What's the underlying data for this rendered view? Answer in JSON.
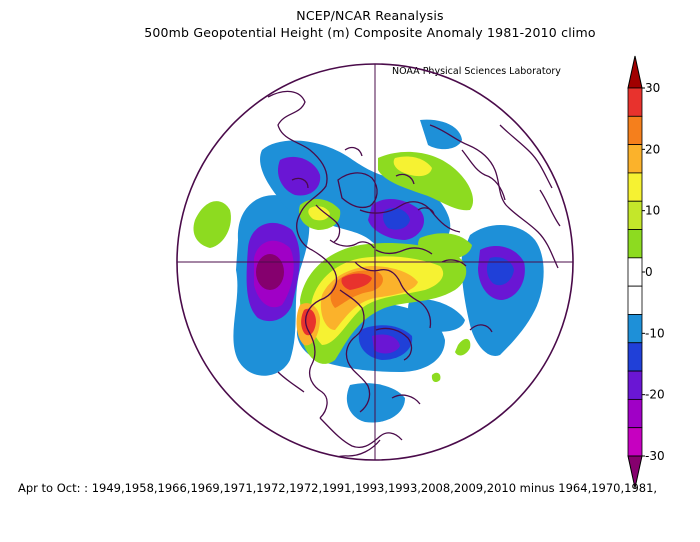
{
  "title": {
    "line1": "NCEP/NCAR Reanalysis",
    "line2": "500mb Geopotential Height (m) Composite Anomaly 1981-2010 climo",
    "credit": "NOAA Physical Sciences Laboratory"
  },
  "footer": "Apr to Oct: : 1949,1958,1966,1969,1971,1972,1972,1991,1993,1993,2008,2009,2010 minus 1964,1970,1981,",
  "colorbar": {
    "ticks": [
      "30",
      "20",
      "10",
      "0",
      "-10",
      "-20",
      "-30"
    ],
    "colors": [
      "#a10000",
      "#e8322d",
      "#f57f1c",
      "#fbb22b",
      "#f6f232",
      "#c4e72a",
      "#8ddb20",
      "#ffffff",
      "#ffffff",
      "#1e90d8",
      "#2040d8",
      "#6a16d4",
      "#a000c6",
      "#c600c0",
      "#85006e"
    ]
  },
  "map": {
    "projection": "north-polar-stereographic",
    "variable": "500mb geopotential height anomaly",
    "units": "m"
  }
}
